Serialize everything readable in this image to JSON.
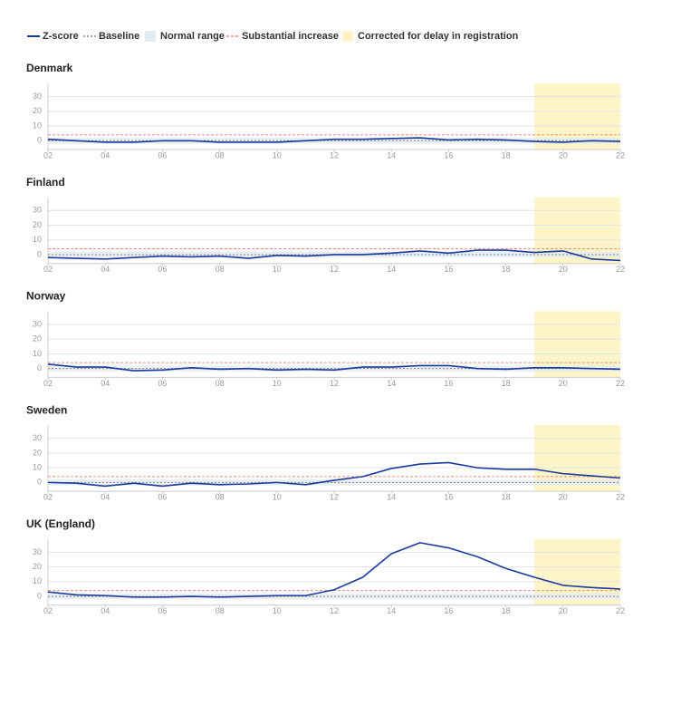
{
  "legend": {
    "z_score": {
      "name": "Z-score",
      "color": "#1a3a9c"
    },
    "baseline": {
      "name": "Baseline",
      "color": "#888888"
    },
    "normal_range": {
      "name": "Normal range",
      "color": "#e4ebf0"
    },
    "substantial_increase": {
      "name": "Substantial increase",
      "color": "#f08a80"
    },
    "corrected": {
      "name": "Corrected for delay in registration",
      "color": "#fdf4c8"
    }
  },
  "chart_data": [
    {
      "type": "line",
      "title": "Denmark",
      "x": [
        2,
        3,
        4,
        5,
        6,
        7,
        8,
        9,
        10,
        11,
        12,
        13,
        14,
        15,
        16,
        17,
        18,
        19,
        20,
        21,
        22
      ],
      "values": [
        1,
        0,
        -1,
        -1,
        0,
        0,
        -1,
        -1,
        -1,
        0,
        1,
        1,
        1.5,
        2,
        0.5,
        1,
        0.5,
        -0.5,
        -1,
        0,
        -0.5
      ],
      "xlim": [
        2,
        22
      ],
      "ylim": [
        -6,
        39
      ],
      "yticks": [
        0,
        10,
        20,
        30
      ],
      "xticks": [
        {
          "value": 2,
          "label": "02"
        },
        {
          "value": 4,
          "label": "04"
        },
        {
          "value": 6,
          "label": "06"
        },
        {
          "value": 8,
          "label": "08"
        },
        {
          "value": 10,
          "label": "10"
        },
        {
          "value": 12,
          "label": "12"
        },
        {
          "value": 14,
          "label": "14"
        },
        {
          "value": 16,
          "label": "16"
        },
        {
          "value": 18,
          "label": "18"
        },
        {
          "value": 20,
          "label": "20"
        },
        {
          "value": 22,
          "label": "22"
        }
      ],
      "baseline": 0,
      "normal_range": [
        -2,
        2
      ],
      "substantial_increase": 4,
      "corrected_from": 19,
      "grid": true
    },
    {
      "type": "line",
      "title": "Finland",
      "x": [
        2,
        3,
        4,
        5,
        6,
        7,
        8,
        9,
        10,
        11,
        12,
        13,
        14,
        15,
        16,
        17,
        18,
        19,
        20,
        21,
        22
      ],
      "values": [
        -2,
        -2.5,
        -3,
        -2,
        -1,
        -1.5,
        -1,
        -2.5,
        -0.5,
        -1,
        0,
        0,
        1,
        2.5,
        1,
        3,
        3,
        1.5,
        2.5,
        -3,
        -4
      ],
      "xlim": [
        2,
        22
      ],
      "ylim": [
        -6,
        39
      ],
      "yticks": [
        0,
        10,
        20,
        30
      ],
      "xticks": [
        {
          "value": 2,
          "label": "02"
        },
        {
          "value": 4,
          "label": "04"
        },
        {
          "value": 6,
          "label": "06"
        },
        {
          "value": 8,
          "label": "08"
        },
        {
          "value": 10,
          "label": "10"
        },
        {
          "value": 12,
          "label": "12"
        },
        {
          "value": 14,
          "label": "14"
        },
        {
          "value": 16,
          "label": "16"
        },
        {
          "value": 18,
          "label": "18"
        },
        {
          "value": 20,
          "label": "20"
        },
        {
          "value": 22,
          "label": "22"
        }
      ],
      "baseline": 0,
      "normal_range": [
        -2,
        2
      ],
      "substantial_increase": 4,
      "corrected_from": 19,
      "grid": true
    },
    {
      "type": "line",
      "title": "Norway",
      "x": [
        2,
        3,
        4,
        5,
        6,
        7,
        8,
        9,
        10,
        11,
        12,
        13,
        14,
        15,
        16,
        17,
        18,
        19,
        20,
        21,
        22
      ],
      "values": [
        3,
        1,
        1,
        -1.5,
        -1,
        0.5,
        -0.5,
        0,
        -1,
        -0.5,
        -1,
        1,
        1,
        2,
        2,
        0,
        -0.5,
        0.5,
        0.5,
        0,
        -0.5
      ],
      "xlim": [
        2,
        22
      ],
      "ylim": [
        -6,
        39
      ],
      "yticks": [
        0,
        10,
        20,
        30
      ],
      "xticks": [
        {
          "value": 2,
          "label": "02"
        },
        {
          "value": 4,
          "label": "04"
        },
        {
          "value": 6,
          "label": "06"
        },
        {
          "value": 8,
          "label": "08"
        },
        {
          "value": 10,
          "label": "10"
        },
        {
          "value": 12,
          "label": "12"
        },
        {
          "value": 14,
          "label": "14"
        },
        {
          "value": 16,
          "label": "16"
        },
        {
          "value": 18,
          "label": "18"
        },
        {
          "value": 20,
          "label": "20"
        },
        {
          "value": 22,
          "label": "22"
        }
      ],
      "baseline": 0,
      "normal_range": [
        -2,
        2
      ],
      "substantial_increase": 4,
      "corrected_from": 19,
      "grid": true
    },
    {
      "type": "line",
      "title": "Sweden",
      "x": [
        2,
        3,
        4,
        5,
        6,
        7,
        8,
        9,
        10,
        11,
        12,
        13,
        14,
        15,
        16,
        17,
        18,
        19,
        20,
        21,
        22
      ],
      "values": [
        0,
        -0.5,
        -2.5,
        -0.5,
        -2.5,
        -0.5,
        -1.5,
        -1,
        0,
        -1.5,
        1.5,
        4,
        9.5,
        12.5,
        13.5,
        10,
        9,
        9,
        6,
        4.5,
        3
      ],
      "xlim": [
        2,
        22
      ],
      "ylim": [
        -6,
        39
      ],
      "yticks": [
        0,
        10,
        20,
        30
      ],
      "xticks": [
        {
          "value": 2,
          "label": "02"
        },
        {
          "value": 4,
          "label": "04"
        },
        {
          "value": 6,
          "label": "06"
        },
        {
          "value": 8,
          "label": "08"
        },
        {
          "value": 10,
          "label": "10"
        },
        {
          "value": 12,
          "label": "12"
        },
        {
          "value": 14,
          "label": "14"
        },
        {
          "value": 16,
          "label": "16"
        },
        {
          "value": 18,
          "label": "18"
        },
        {
          "value": 20,
          "label": "20"
        },
        {
          "value": 22,
          "label": "22"
        }
      ],
      "baseline": 0,
      "normal_range": [
        -2,
        2
      ],
      "substantial_increase": 4,
      "corrected_from": 19,
      "grid": true
    },
    {
      "type": "line",
      "title": "UK (England)",
      "x": [
        2,
        3,
        4,
        5,
        6,
        7,
        8,
        9,
        10,
        11,
        12,
        13,
        14,
        15,
        16,
        17,
        18,
        19,
        20,
        21,
        22
      ],
      "values": [
        3,
        1,
        0.5,
        -0.5,
        -0.5,
        0,
        -0.5,
        0,
        0.5,
        0.5,
        4.5,
        13,
        29,
        36.5,
        33,
        27,
        19,
        13,
        7.5,
        6,
        5
      ],
      "xlim": [
        2,
        22
      ],
      "ylim": [
        -6,
        39
      ],
      "yticks": [
        0,
        10,
        20,
        30
      ],
      "xticks": [
        {
          "value": 2,
          "label": "02"
        },
        {
          "value": 4,
          "label": "04"
        },
        {
          "value": 6,
          "label": "06"
        },
        {
          "value": 8,
          "label": "08"
        },
        {
          "value": 10,
          "label": "10"
        },
        {
          "value": 12,
          "label": "12"
        },
        {
          "value": 14,
          "label": "14"
        },
        {
          "value": 16,
          "label": "16"
        },
        {
          "value": 18,
          "label": "18"
        },
        {
          "value": 20,
          "label": "20"
        },
        {
          "value": 22,
          "label": "22"
        }
      ],
      "baseline": 0,
      "normal_range": [
        -2,
        2
      ],
      "substantial_increase": 4,
      "corrected_from": 19,
      "grid": true
    }
  ]
}
